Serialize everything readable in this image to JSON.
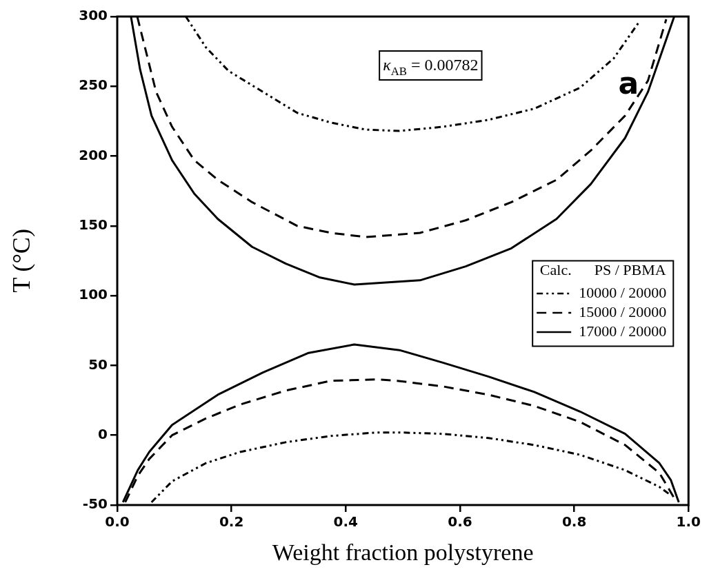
{
  "chart_data": {
    "type": "line",
    "xlabel": "Weight fraction polystyrene",
    "ylabel": "T (°C)",
    "legend_title": "Calc.      PS / PBMA",
    "annotations": [
      "κ$_{AB}$ = 0.00782",
      "a"
    ],
    "xlim": [
      0,
      1
    ],
    "xticks": [
      {
        "value": 0,
        "label": "0.0"
      },
      {
        "value": 0.2,
        "label": "0.2"
      },
      {
        "value": 0.4,
        "label": "0.4"
      },
      {
        "value": 0.6,
        "label": "0.6"
      },
      {
        "value": 0.8,
        "label": "0.8"
      },
      {
        "value": 1,
        "label": "1.0"
      }
    ],
    "ylim": [
      -50,
      300
    ],
    "yticks": [
      -50,
      0,
      50,
      100,
      150,
      200,
      250,
      300
    ],
    "grid": false,
    "legend": "right",
    "marker": "none",
    "series": [
      {
        "name": "10000 / 20000",
        "color": "#000000",
        "line_style": "dotted",
        "x": [
          0.12,
          0.155,
          0.195,
          0.255,
          0.315,
          0.374,
          0.435,
          0.494,
          0.57,
          0.65,
          0.73,
          0.81,
          0.869,
          0.915
        ],
        "values": [
          300,
          278,
          261,
          246,
          231,
          224,
          219,
          218,
          221,
          226,
          234,
          249,
          270,
          297
        ]
      },
      {
        "color": "#000000",
        "line_style": "dotted",
        "x": [
          0.06,
          0.096,
          0.155,
          0.215,
          0.295,
          0.374,
          0.455,
          0.494,
          0.57,
          0.65,
          0.73,
          0.81,
          0.889,
          0.949,
          0.969
        ],
        "values": [
          -48,
          -33,
          -20,
          -12,
          -5,
          -0.5,
          2,
          2,
          1,
          -2,
          -7,
          -14,
          -25,
          -37,
          -43
        ]
      },
      {
        "name": "15000 / 20000",
        "color": "#000000",
        "line_style": "dashed",
        "x": [
          0.035,
          0.068,
          0.096,
          0.135,
          0.176,
          0.236,
          0.315,
          0.374,
          0.435,
          0.53,
          0.61,
          0.69,
          0.769,
          0.829,
          0.889,
          0.929,
          0.961
        ],
        "values": [
          300,
          246,
          221,
          197,
          183,
          167,
          150,
          145,
          142,
          145,
          154,
          167,
          183,
          204,
          229,
          254,
          298
        ]
      },
      {
        "color": "#000000",
        "line_style": "dashed",
        "x": [
          0.014,
          0.036,
          0.056,
          0.096,
          0.155,
          0.215,
          0.295,
          0.374,
          0.455,
          0.49,
          0.57,
          0.65,
          0.73,
          0.81,
          0.889,
          0.949,
          0.975
        ],
        "values": [
          -48,
          -29,
          -17,
          0,
          12,
          22,
          32,
          39,
          40,
          39,
          35,
          29,
          21,
          9.6,
          -7,
          -27,
          -45
        ]
      },
      {
        "name": "17000 / 20000",
        "color": "#000000",
        "line_style": "solid",
        "x": [
          0.024,
          0.04,
          0.06,
          0.096,
          0.135,
          0.176,
          0.236,
          0.295,
          0.355,
          0.415,
          0.53,
          0.61,
          0.69,
          0.769,
          0.829,
          0.889,
          0.929,
          0.975
        ],
        "values": [
          300,
          262,
          229,
          197,
          173,
          155,
          135,
          123,
          113,
          108,
          111,
          121,
          134,
          155,
          180,
          213,
          246,
          300
        ]
      },
      {
        "color": "#000000",
        "line_style": "solid",
        "x": [
          0.01,
          0.036,
          0.056,
          0.096,
          0.176,
          0.255,
          0.335,
          0.415,
          0.494,
          0.57,
          0.65,
          0.73,
          0.81,
          0.889,
          0.949,
          0.969,
          0.983
        ],
        "values": [
          -48,
          -25,
          -12,
          7.4,
          29,
          45,
          59,
          65,
          61,
          52,
          42,
          31,
          17,
          1,
          -20,
          -32,
          -48
        ]
      }
    ]
  }
}
